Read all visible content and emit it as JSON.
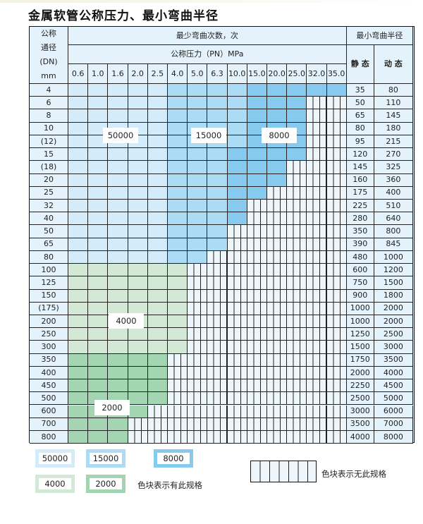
{
  "title": "金属软管公称压力、最小弯曲半径",
  "header": {
    "dn_label": [
      "公称",
      "通径",
      "(DN)",
      "mm"
    ],
    "cycles_label": "最少弯曲次数，次",
    "pressure_label": "公称压力（PN）MPa",
    "radius_label": "最小弯曲半径",
    "static_label": "静 态",
    "dynamic_label": "动 态"
  },
  "pressures": [
    "0.6",
    "1.0",
    "1.6",
    "2.0",
    "2.5",
    "4.0",
    "5.0",
    "6.3",
    "10.0",
    "15.0",
    "20.0",
    "25.0",
    "32.0",
    "35.0"
  ],
  "categories": {
    "a": "50000",
    "b": "15000",
    "c": "8000",
    "d": "4000",
    "e": "2000",
    "x": "无此规格"
  },
  "colors": {
    "a": "#d4ecf9",
    "b": "#acdcf5",
    "c": "#86cbef",
    "d": "#d3e9d6",
    "e": "#a3d5b2",
    "hatch_bg": "#eef6fc"
  },
  "rows": [
    {
      "dn": "4",
      "static": "35",
      "dynamic": "80",
      "cells": "aaaaabbbbccccc"
    },
    {
      "dn": "6",
      "static": "50",
      "dynamic": "110",
      "cells": "aaaaabbbbcccxx"
    },
    {
      "dn": "8",
      "static": "65",
      "dynamic": "145",
      "cells": "aaaaabbbbcccxx"
    },
    {
      "dn": "10",
      "static": "80",
      "dynamic": "180",
      "cells": "aaaaabbbbcccxx"
    },
    {
      "dn": "(12)",
      "static": "95",
      "dynamic": "215",
      "cells": "aaaaabbbbcccxx"
    },
    {
      "dn": "15",
      "static": "120",
      "dynamic": "270",
      "cells": "aaaaabbbccccxx"
    },
    {
      "dn": "(18)",
      "static": "145",
      "dynamic": "325",
      "cells": "aaaaabbbcccxxx"
    },
    {
      "dn": "20",
      "static": "160",
      "dynamic": "360",
      "cells": "aaaaabbbcccxxx"
    },
    {
      "dn": "25",
      "static": "175",
      "dynamic": "400",
      "cells": "aaaaabbbccxxxx"
    },
    {
      "dn": "32",
      "static": "225",
      "dynamic": "510",
      "cells": "aaaaabbbcxxxxx"
    },
    {
      "dn": "40",
      "static": "280",
      "dynamic": "640",
      "cells": "aaaaabbbcxxxxx"
    },
    {
      "dn": "50",
      "static": "350",
      "dynamic": "800",
      "cells": "aaaaabbbxxxxxx"
    },
    {
      "dn": "65",
      "static": "390",
      "dynamic": "845",
      "cells": "aaaaabbbxxxxxx"
    },
    {
      "dn": "80",
      "static": "480",
      "dynamic": "1000",
      "cells": "aaaaabbxxxxxxx"
    },
    {
      "dn": "100",
      "static": "600",
      "dynamic": "1200",
      "cells": "ddddddxxxxxxxx"
    },
    {
      "dn": "125",
      "static": "750",
      "dynamic": "1500",
      "cells": "ddddddxxxxxxxx"
    },
    {
      "dn": "150",
      "static": "900",
      "dynamic": "1800",
      "cells": "ddddddxxxxxxxx"
    },
    {
      "dn": "(175)",
      "static": "1000",
      "dynamic": "2000",
      "cells": "ddddddxxxxxxxx"
    },
    {
      "dn": "200",
      "static": "1000",
      "dynamic": "2000",
      "cells": "ddddddxxxxxxxx"
    },
    {
      "dn": "250",
      "static": "1250",
      "dynamic": "2500",
      "cells": "ddddddxxxxxxxx"
    },
    {
      "dn": "300",
      "static": "1500",
      "dynamic": "3000",
      "cells": "ddddddxxxxxxxx"
    },
    {
      "dn": "350",
      "static": "1750",
      "dynamic": "3500",
      "cells": "eeeeexxxxxxxxx"
    },
    {
      "dn": "400",
      "static": "2000",
      "dynamic": "4000",
      "cells": "eeeeexxxxxxxxx"
    },
    {
      "dn": "450",
      "static": "2250",
      "dynamic": "4500",
      "cells": "eeeeexxxxxxxxx"
    },
    {
      "dn": "500",
      "static": "2500",
      "dynamic": "5000",
      "cells": "eeeeexxxxxxxxx"
    },
    {
      "dn": "600",
      "static": "3000",
      "dynamic": "6000",
      "cells": "eeeexxxxxxxxxx"
    },
    {
      "dn": "700",
      "static": "3500",
      "dynamic": "7000",
      "cells": "eeexxxxxxxxxxx"
    },
    {
      "dn": "800",
      "static": "4000",
      "dynamic": "8000",
      "cells": "eeexxxxxxxxxxx"
    }
  ],
  "region_labels": {
    "a": "50000",
    "b": "15000",
    "c": "8000",
    "d": "4000",
    "e": "2000"
  },
  "legend": {
    "a": "50000",
    "b": "15000",
    "c": "8000",
    "d": "4000",
    "e": "2000",
    "has_spec": "色块表示有此规格",
    "no_spec": "色块表示无此规格"
  }
}
